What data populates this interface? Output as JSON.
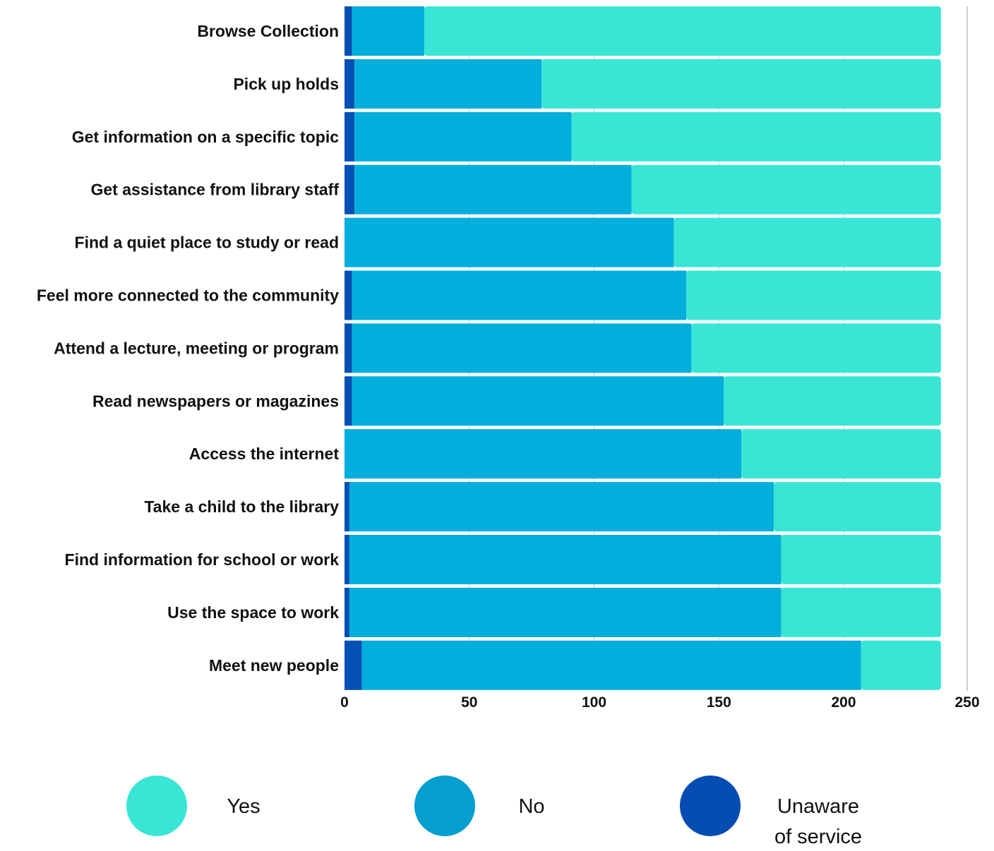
{
  "colors": {
    "yes": "#39E6D6",
    "no": "#02AEDC",
    "unaware": "#0550B4",
    "legend_no": "#059ED0",
    "legend_unaware": "#054DB2",
    "grid": "#c8c8c8",
    "axis_line": "#cfcfcf"
  },
  "chart_data": {
    "type": "bar",
    "orientation": "horizontal",
    "stacked": true,
    "categories": [
      "Browse Collection",
      "Pick up holds",
      "Get information on a specific topic",
      "Get assistance from library staff",
      "Find a quiet place to study or read",
      "Feel more connected to the community",
      "Attend a lecture, meeting or program",
      "Read newspapers or magazines",
      "Access the internet",
      "Take a child to the library",
      "Find information for school or work",
      "Use the space to work",
      "Meet new people"
    ],
    "series": [
      {
        "name": "Unaware of service",
        "values": [
          3,
          4,
          4,
          4,
          0,
          3,
          3,
          3,
          0,
          2,
          2,
          2,
          7
        ]
      },
      {
        "name": "No",
        "values": [
          29,
          75,
          87,
          111,
          132,
          134,
          136,
          149,
          159,
          170,
          173,
          173,
          200
        ]
      },
      {
        "name": "Yes",
        "values": [
          207,
          160,
          148,
          124,
          107,
          102,
          100,
          87,
          80,
          67,
          64,
          64,
          32
        ]
      }
    ],
    "x_ticks": [
      "0",
      "50",
      "100",
      "150",
      "200",
      "250"
    ],
    "xlim": [
      0,
      250
    ],
    "grid": true,
    "legend_position": "bottom"
  },
  "legend": {
    "items": [
      {
        "label_lines": [
          "Yes"
        ],
        "color_key": "yes"
      },
      {
        "label_lines": [
          "No"
        ],
        "color_key": "legend_no"
      },
      {
        "label_lines": [
          "Unaware",
          "of service"
        ],
        "color_key": "legend_unaware"
      }
    ]
  }
}
